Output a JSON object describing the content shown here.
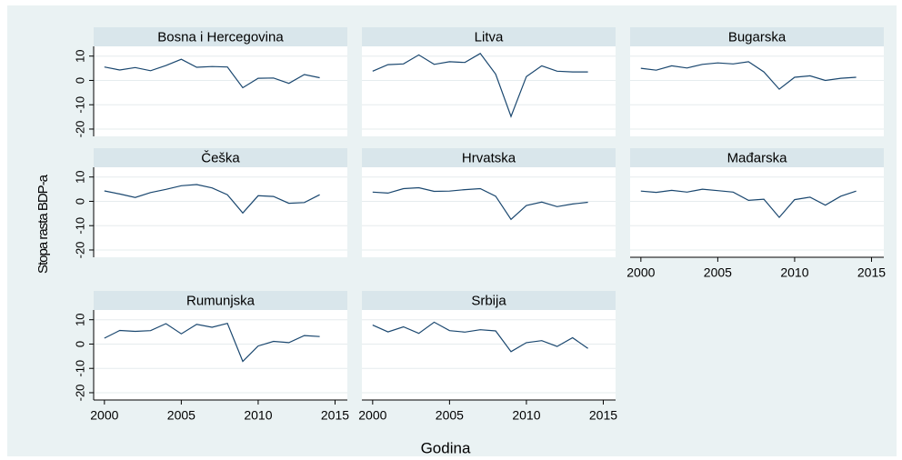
{
  "chart_data": {
    "type": "line",
    "xlabel": "Godina",
    "ylabel": "Stopa rasta BDP-a",
    "x": [
      2000,
      2001,
      2002,
      2003,
      2004,
      2005,
      2006,
      2007,
      2008,
      2009,
      2010,
      2011,
      2012,
      2013,
      2014
    ],
    "color": "#1a476f",
    "xlim": [
      1999.3,
      2015.8
    ],
    "xticks": [
      2000,
      2005,
      2010,
      2015
    ],
    "ylim": [
      -23,
      14
    ],
    "yticks": [
      -20,
      -10,
      0,
      10
    ],
    "grid": true,
    "series": [
      {
        "name": "Bosna i Hercegovina",
        "values": [
          5.5,
          4.3,
          5.3,
          4.0,
          6.1,
          8.7,
          5.4,
          5.7,
          5.5,
          -3.0,
          0.9,
          1.0,
          -1.2,
          2.4,
          1.1
        ]
      },
      {
        "name": "Litva",
        "values": [
          3.8,
          6.5,
          6.8,
          10.5,
          6.6,
          7.7,
          7.4,
          11.1,
          2.6,
          -14.8,
          1.6,
          6.0,
          3.8,
          3.5,
          3.5
        ]
      },
      {
        "name": "Bugarska",
        "values": [
          5.0,
          4.2,
          6.0,
          5.1,
          6.6,
          7.2,
          6.8,
          7.7,
          3.5,
          -3.6,
          1.3,
          1.9,
          0.0,
          0.9,
          1.3
        ]
      },
      {
        "name": "Češka",
        "values": [
          4.3,
          3.0,
          1.6,
          3.6,
          4.9,
          6.4,
          6.9,
          5.5,
          2.7,
          -4.8,
          2.3,
          2.0,
          -0.8,
          -0.5,
          2.7
        ]
      },
      {
        "name": "Hrvatska",
        "values": [
          3.8,
          3.4,
          5.2,
          5.6,
          4.1,
          4.2,
          4.8,
          5.2,
          2.1,
          -7.4,
          -1.7,
          -0.3,
          -2.2,
          -1.1,
          -0.4
        ]
      },
      {
        "name": "Mađarska",
        "values": [
          4.2,
          3.7,
          4.5,
          3.8,
          5.0,
          4.4,
          3.8,
          0.4,
          0.9,
          -6.6,
          0.7,
          1.7,
          -1.6,
          2.1,
          4.2
        ]
      },
      {
        "name": "Rumunjska",
        "values": [
          2.4,
          5.6,
          5.2,
          5.5,
          8.4,
          4.2,
          8.1,
          6.9,
          8.5,
          -7.1,
          -0.8,
          1.1,
          0.6,
          3.5,
          3.1
        ]
      },
      {
        "name": "Srbija",
        "values": [
          7.8,
          5.0,
          7.1,
          4.4,
          9.0,
          5.5,
          4.9,
          5.9,
          5.4,
          -3.1,
          0.6,
          1.4,
          -1.0,
          2.6,
          -1.8
        ]
      }
    ]
  }
}
